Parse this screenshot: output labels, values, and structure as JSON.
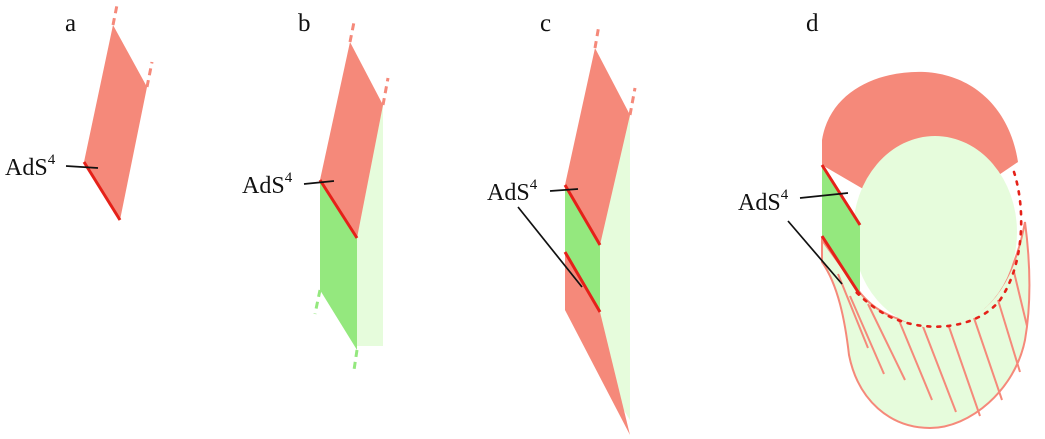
{
  "panels": [
    {
      "id": "a",
      "label": "a",
      "ads_base": "AdS",
      "ads_exp": "4"
    },
    {
      "id": "b",
      "label": "b",
      "ads_base": "AdS",
      "ads_exp": "4"
    },
    {
      "id": "c",
      "label": "c",
      "ads_base": "AdS",
      "ads_exp": "4"
    },
    {
      "id": "d",
      "label": "d",
      "ads_base": "AdS",
      "ads_exp": "4"
    }
  ],
  "colors": {
    "salmon": "#f5897a",
    "green": "#94e87e",
    "pale_green": "#e6fcdc",
    "red_line": "#e52119",
    "dash": "#f5897a",
    "text": "#111111"
  }
}
